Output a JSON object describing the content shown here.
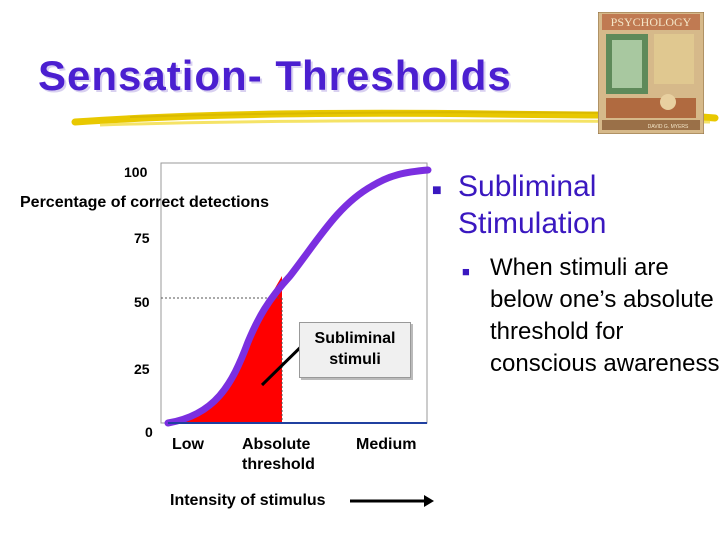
{
  "title": "Sensation- Thresholds",
  "book_cover": {
    "title": "PSYCHOLOGY",
    "author": "DAVID G. MYERS",
    "accent": "#c0392b"
  },
  "diagram": {
    "y_axis_label": "Percentage of correct detections",
    "y_ticks": [
      "100",
      "75",
      "50",
      "25",
      "0"
    ],
    "x_labels": {
      "low": "Low",
      "absolute": "Absolute threshold",
      "medium": "Medium"
    },
    "x_axis_title": "Intensity of stimulus",
    "callout": "Subliminal stimuli",
    "curve_color": "#7b2fe0",
    "fill_color": "#ff0000"
  },
  "bullets": {
    "main": "Subliminal Stimulation",
    "sub": "When stimuli are below one’s absolute threshold for conscious awareness"
  }
}
